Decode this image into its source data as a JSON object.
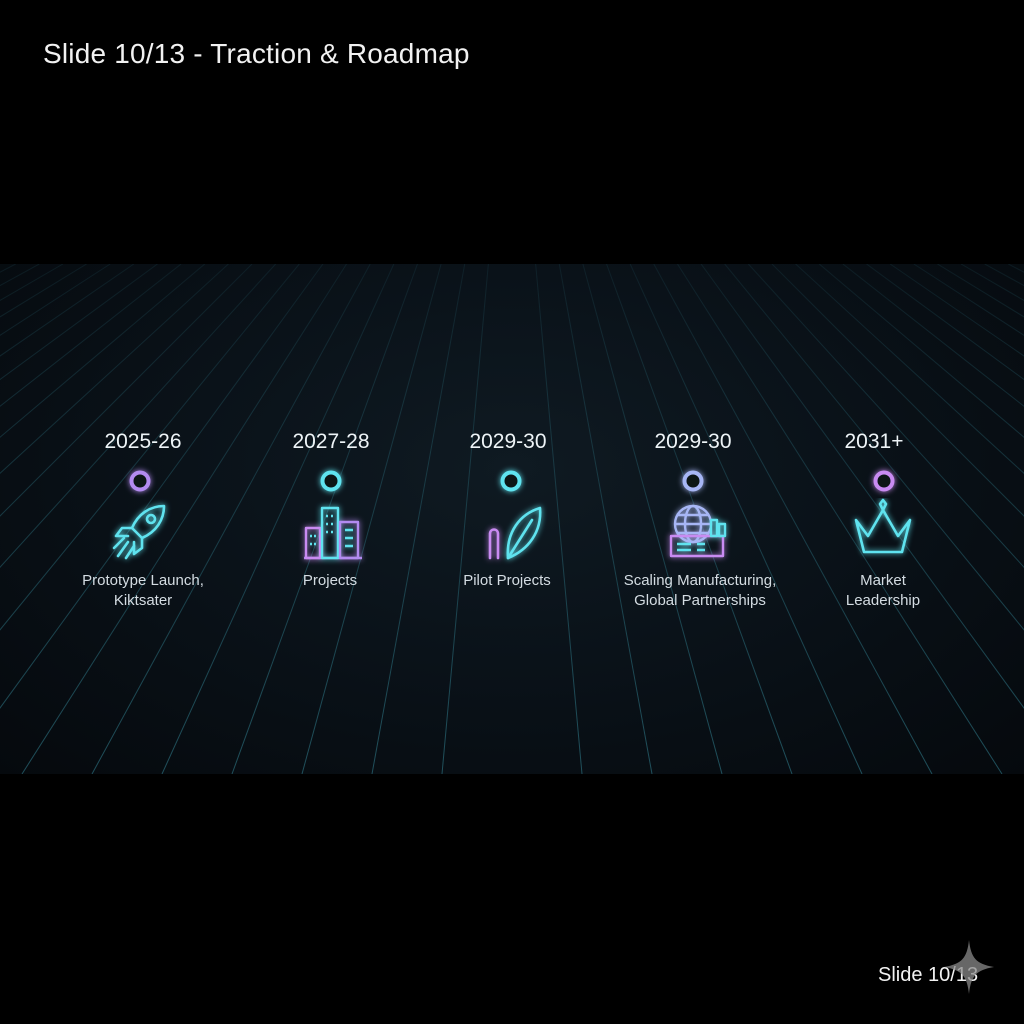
{
  "slide": {
    "title": "Slide 10/13 - Traction & Roadmap",
    "footer": "Slide 10/13"
  },
  "timeline": {
    "milestones": [
      {
        "year": "2025-26",
        "label_lines": [
          "Prototype Launch,",
          "Kiktsater"
        ],
        "icon": "rocket-icon",
        "node_color": "#b38bf0"
      },
      {
        "year": "2027-28",
        "label_lines": [
          "Projects"
        ],
        "icon": "city-buildings-icon",
        "node_color": "#5fe3ef"
      },
      {
        "year": "2029-30",
        "label_lines": [
          "Pilot Projects"
        ],
        "icon": "leaf-icon",
        "node_color": "#5fe3ef"
      },
      {
        "year": "2029-30",
        "label_lines": [
          "Scaling Manufacturing,",
          "Global Partnerships"
        ],
        "icon": "globe-factory-icon",
        "node_color": "#a7b6f5"
      },
      {
        "year": "2031+",
        "label_lines": [
          "Market",
          "Leadership"
        ],
        "icon": "crown-icon",
        "node_color": "#c98bf2"
      }
    ]
  },
  "colors": {
    "background": "#000000",
    "grid_line": "#1f5966",
    "cyan": "#5fe3ef",
    "violet": "#b38bf0",
    "magenta": "#d07ff0"
  }
}
